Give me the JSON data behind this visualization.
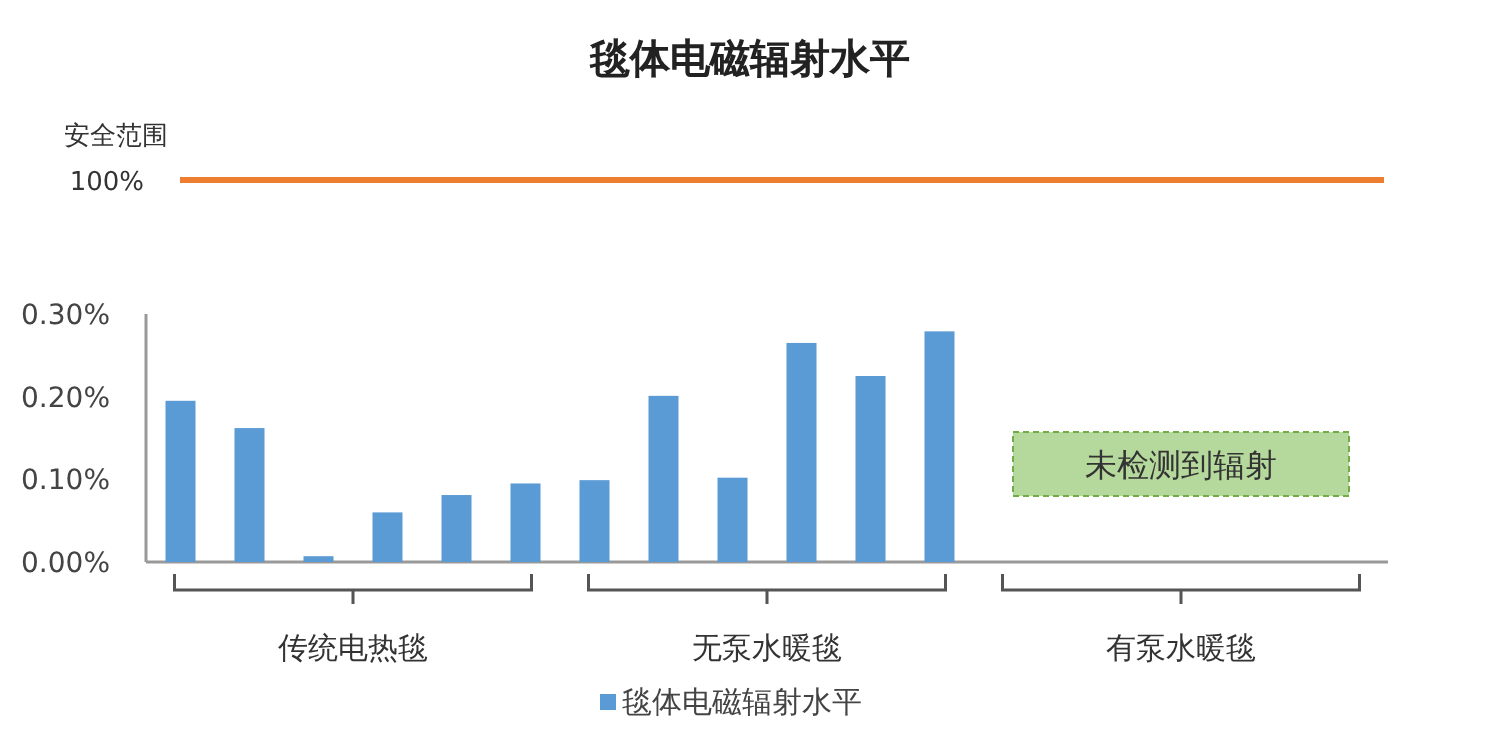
{
  "chart_data": {
    "type": "bar",
    "title": "毯体电磁辐射水平",
    "categories": [
      null,
      null,
      null,
      null,
      null,
      null,
      null,
      null,
      null,
      null,
      null,
      null,
      null,
      null,
      null,
      null,
      null,
      null
    ],
    "series": [
      {
        "name": "毯体电磁辐射水平",
        "color": "#5b9bd5",
        "values": [
          0.195,
          0.162,
          0.007,
          0.06,
          0.081,
          0.095,
          0.099,
          0.201,
          0.102,
          0.265,
          0.225,
          0.279,
          null,
          null,
          null,
          null,
          null,
          null
        ]
      }
    ],
    "ylim": [
      0,
      0.3
    ],
    "yticks": [
      {
        "value": 0,
        "label": "0.00%"
      },
      {
        "value": 0.1,
        "label": "0.10%"
      },
      {
        "value": 0.2,
        "label": "0.20%"
      },
      {
        "value": 0.3,
        "label": "0.30%"
      }
    ],
    "annotations": [
      "安全范围",
      "100%",
      "传统电热毯",
      "无泵水暖毯",
      "有泵水暖毯",
      "未检测到辐射"
    ],
    "legend": "bottom",
    "grid": false
  }
}
